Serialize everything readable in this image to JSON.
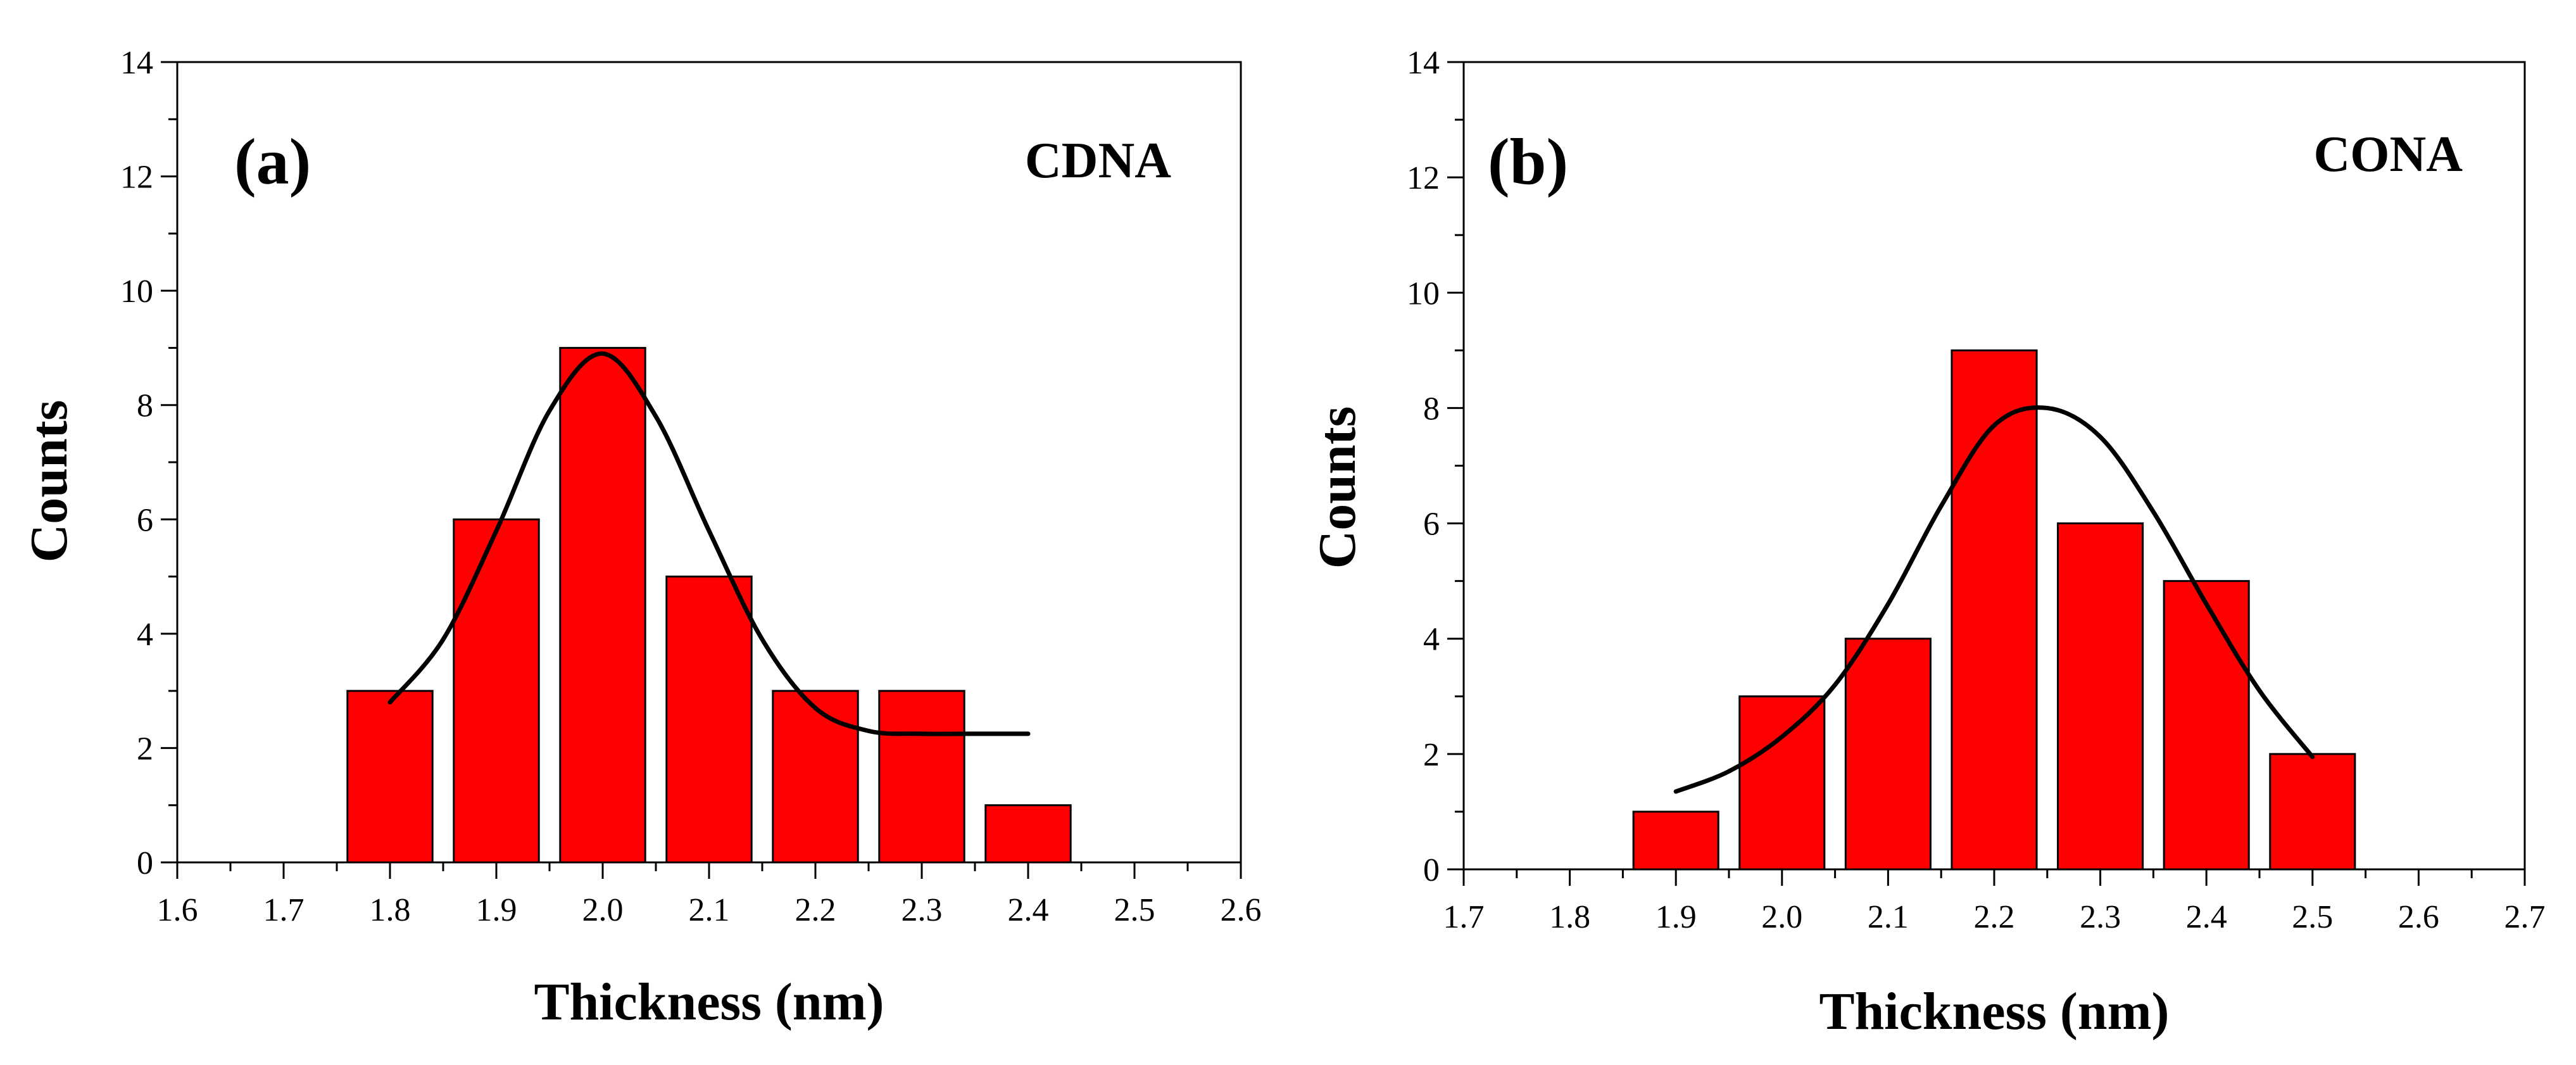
{
  "chart_data": [
    {
      "type": "bar",
      "panel_label": "(a)",
      "sample_label": "CDNA",
      "xlabel": "Thickness (nm)",
      "ylabel": "Counts",
      "xlim": [
        1.6,
        2.6
      ],
      "ylim": [
        0,
        14
      ],
      "x_ticks": [
        "1.6",
        "1.7",
        "1.8",
        "1.9",
        "2.0",
        "2.1",
        "2.2",
        "2.3",
        "2.4",
        "2.5",
        "2.6"
      ],
      "y_ticks": [
        "0",
        "2",
        "4",
        "6",
        "8",
        "10",
        "12",
        "14"
      ],
      "bar_color": "#ff0000",
      "bar_width": 0.08,
      "x": [
        1.8,
        1.9,
        2.0,
        2.1,
        2.2,
        2.3,
        2.4
      ],
      "values": [
        3,
        6,
        9,
        5,
        3,
        3,
        1
      ],
      "fit_curve": {
        "x": [
          1.8,
          1.85,
          1.9,
          1.95,
          2.0,
          2.05,
          2.1,
          2.15,
          2.2,
          2.25,
          2.3,
          2.35,
          2.4
        ],
        "y": [
          2.8,
          3.9,
          5.8,
          7.9,
          8.9,
          7.8,
          5.8,
          3.9,
          2.7,
          2.3,
          2.25,
          2.25,
          2.25
        ]
      }
    },
    {
      "type": "bar",
      "panel_label": "(b)",
      "sample_label": "CONA",
      "xlabel": "Thickness (nm)",
      "ylabel": "Counts",
      "xlim": [
        1.7,
        2.7
      ],
      "ylim": [
        0,
        14
      ],
      "x_ticks": [
        "1.7",
        "1.8",
        "1.9",
        "2.0",
        "2.1",
        "2.2",
        "2.3",
        "2.4",
        "2.5",
        "2.6",
        "2.7"
      ],
      "y_ticks": [
        "0",
        "2",
        "4",
        "6",
        "8",
        "10",
        "12",
        "14"
      ],
      "bar_color": "#ff0000",
      "bar_width": 0.08,
      "x": [
        1.9,
        2.0,
        2.1,
        2.2,
        2.3,
        2.4,
        2.5
      ],
      "values": [
        1,
        3,
        4,
        9,
        6,
        5,
        2
      ],
      "fit_curve": {
        "x": [
          1.9,
          1.95,
          2.0,
          2.05,
          2.1,
          2.15,
          2.2,
          2.25,
          2.3,
          2.35,
          2.4,
          2.45,
          2.5
        ],
        "y": [
          1.35,
          1.7,
          2.3,
          3.2,
          4.6,
          6.3,
          7.7,
          8.0,
          7.5,
          6.2,
          4.6,
          3.1,
          1.95
        ]
      }
    }
  ]
}
